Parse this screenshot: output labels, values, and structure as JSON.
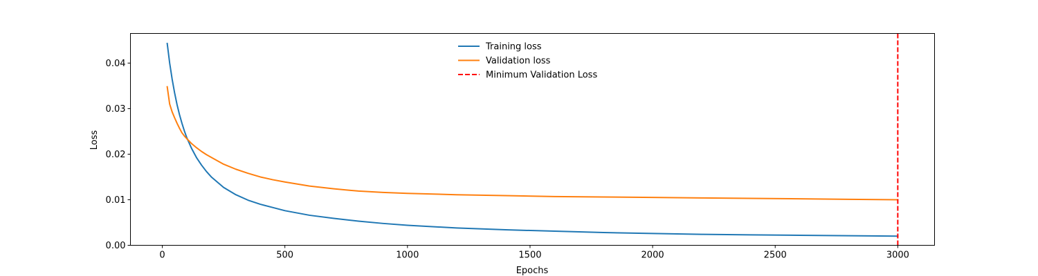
{
  "chart_data": {
    "type": "line",
    "title": "",
    "xlabel": "Epochs",
    "ylabel": "Loss",
    "xlim": [
      -130,
      3150
    ],
    "ylim": [
      0,
      0.0465
    ],
    "xticks": [
      0,
      500,
      1000,
      1500,
      2000,
      2500,
      3000
    ],
    "yticks": [
      0.0,
      0.01,
      0.02,
      0.03,
      0.04
    ],
    "xtick_labels": [
      "0",
      "500",
      "1000",
      "1500",
      "2000",
      "2500",
      "3000"
    ],
    "ytick_labels": [
      "0.00",
      "0.01",
      "0.02",
      "0.03",
      "0.04"
    ],
    "grid": false,
    "legend_position": "top-center",
    "x": [
      20,
      30,
      40,
      50,
      60,
      70,
      80,
      90,
      100,
      120,
      140,
      160,
      180,
      200,
      250,
      300,
      350,
      400,
      450,
      500,
      600,
      700,
      800,
      900,
      1000,
      1200,
      1400,
      1600,
      1800,
      2000,
      2200,
      2400,
      2600,
      2800,
      3000
    ],
    "series": [
      {
        "name": "Training loss",
        "color": "#1f77b4",
        "style": "solid",
        "values": [
          0.0443,
          0.04,
          0.0365,
          0.0335,
          0.0309,
          0.0287,
          0.0268,
          0.0251,
          0.0236,
          0.0212,
          0.0192,
          0.0176,
          0.0162,
          0.015,
          0.0127,
          0.0111,
          0.0099,
          0.009,
          0.0083,
          0.0076,
          0.0066,
          0.0059,
          0.0053,
          0.0048,
          0.0044,
          0.0038,
          0.0034,
          0.0031,
          0.0028,
          0.0026,
          0.0024,
          0.0023,
          0.0022,
          0.0021,
          0.002
        ]
      },
      {
        "name": "Validation loss",
        "color": "#ff7f0e",
        "style": "solid",
        "values": [
          0.0348,
          0.031,
          0.0293,
          0.028,
          0.0268,
          0.0257,
          0.0247,
          0.024,
          0.0234,
          0.0223,
          0.0214,
          0.0206,
          0.0199,
          0.0193,
          0.0178,
          0.0167,
          0.0158,
          0.015,
          0.0144,
          0.0139,
          0.013,
          0.0124,
          0.0119,
          0.0116,
          0.0114,
          0.0111,
          0.0109,
          0.0107,
          0.0106,
          0.0105,
          0.0104,
          0.0103,
          0.0102,
          0.0101,
          0.01
        ]
      }
    ],
    "vline": {
      "name": "Minimum Validation Loss",
      "x": 3000,
      "color": "#ff0000",
      "style": "dashed"
    }
  }
}
